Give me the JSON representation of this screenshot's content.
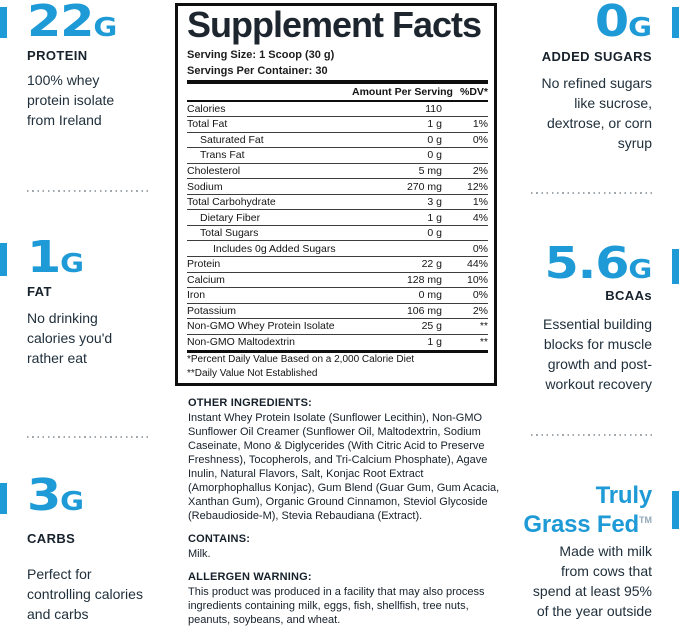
{
  "accent_color": "#1e9ad6",
  "left_column": {
    "stats": [
      {
        "value": "22",
        "unit": "G",
        "label": "PROTEIN",
        "description": [
          "100% whey",
          "protein isolate",
          "from Ireland"
        ]
      },
      {
        "value": "1",
        "unit": "G",
        "label": "FAT",
        "description": [
          "No drinking",
          "calories you'd",
          "rather eat"
        ]
      },
      {
        "value": "3",
        "unit": "G",
        "label": "CARBS",
        "description": [
          "Perfect for",
          "controlling calories",
          "and carbs"
        ]
      }
    ]
  },
  "right_column": {
    "stats": [
      {
        "value": "0",
        "unit": "G",
        "label": "ADDED SUGARS",
        "description": [
          "No refined sugars",
          "like sucrose,",
          "dextrose, or corn",
          "syrup"
        ]
      },
      {
        "value": "5.6",
        "unit": "G",
        "label": "BCAAs",
        "description": [
          "Essential building",
          "blocks for muscle",
          "growth and post-",
          "workout recovery"
        ]
      },
      {
        "title": [
          "Truly",
          "Grass Fed"
        ],
        "trademark": "TM",
        "description": [
          "Made with milk",
          "from cows that",
          "spend at least 95%",
          "of the year outside"
        ]
      }
    ]
  },
  "panel": {
    "title": "Supplement Facts",
    "serving_size": "Serving Size: 1 Scoop (30 g)",
    "servings_per_container": "Servings Per Container: 30",
    "col_amount": "Amount Per Serving",
    "col_dv": "%DV*",
    "rows": [
      {
        "name": "Calories",
        "amount": "110",
        "dv": "",
        "indent": 0
      },
      {
        "name": "Total Fat",
        "amount": "1 g",
        "dv": "1%",
        "indent": 0
      },
      {
        "name": "Saturated Fat",
        "amount": "0 g",
        "dv": "0%",
        "indent": 1
      },
      {
        "name": "Trans Fat",
        "amount": "0 g",
        "dv": "",
        "indent": 1
      },
      {
        "name": "Cholesterol",
        "amount": "5 mg",
        "dv": "2%",
        "indent": 0
      },
      {
        "name": "Sodium",
        "amount": "270 mg",
        "dv": "12%",
        "indent": 0
      },
      {
        "name": "Total Carbohydrate",
        "amount": "3 g",
        "dv": "1%",
        "indent": 0
      },
      {
        "name": "Dietary Fiber",
        "amount": "1 g",
        "dv": "4%",
        "indent": 1
      },
      {
        "name": "Total Sugars",
        "amount": "0 g",
        "dv": "",
        "indent": 1
      },
      {
        "name": "Includes 0g Added Sugars",
        "amount": "",
        "dv": "0%",
        "indent": 2
      },
      {
        "name": "Protein",
        "amount": "22 g",
        "dv": "44%",
        "indent": 0
      },
      {
        "name": "Calcium",
        "amount": "128 mg",
        "dv": "10%",
        "indent": 0
      },
      {
        "name": "Iron",
        "amount": "0 mg",
        "dv": "0%",
        "indent": 0
      },
      {
        "name": "Potassium",
        "amount": "106 mg",
        "dv": "2%",
        "indent": 0
      },
      {
        "name": "Non-GMO Whey Protein Isolate",
        "amount": "25 g",
        "dv": "**",
        "indent": 0
      },
      {
        "name": "Non-GMO Maltodextrin",
        "amount": "1 g",
        "dv": "**",
        "indent": 0
      }
    ],
    "footnotes": [
      "*Percent Daily Value Based on a 2,000 Calorie Diet",
      "**Daily Value Not Established"
    ]
  },
  "ingredients": {
    "other_heading": "OTHER INGREDIENTS:",
    "other_lines": [
      "Instant Whey Protein Isolate (Sunflower Lecithin), Non-GMO",
      "Sunflower Oil Creamer (Sunflower Oil, Maltodextrin, Sodium",
      "Caseinate, Mono & Diglycerides (With Citric Acid to Preserve",
      "Freshness), Tocopherols, and Tri-Calcium Phosphate), Agave",
      "Inulin, Natural Flavors, Salt, Konjac Root Extract",
      "(Amorphophallus Konjac), Gum Blend (Guar Gum, Gum Acacia,",
      "Xanthan Gum), Organic Ground Cinnamon, Steviol Glycoside",
      "(Rebaudioside-M), Stevia Rebaudiana (Extract)."
    ],
    "contains_heading": "CONTAINS:",
    "contains": "Milk.",
    "allergen_heading": "ALLERGEN WARNING:",
    "allergen_lines": [
      "This product was produced in a facility that may also process",
      "ingredients containing milk, eggs, fish, shellfish, tree nuts,",
      "peanuts, soybeans, and wheat."
    ]
  }
}
